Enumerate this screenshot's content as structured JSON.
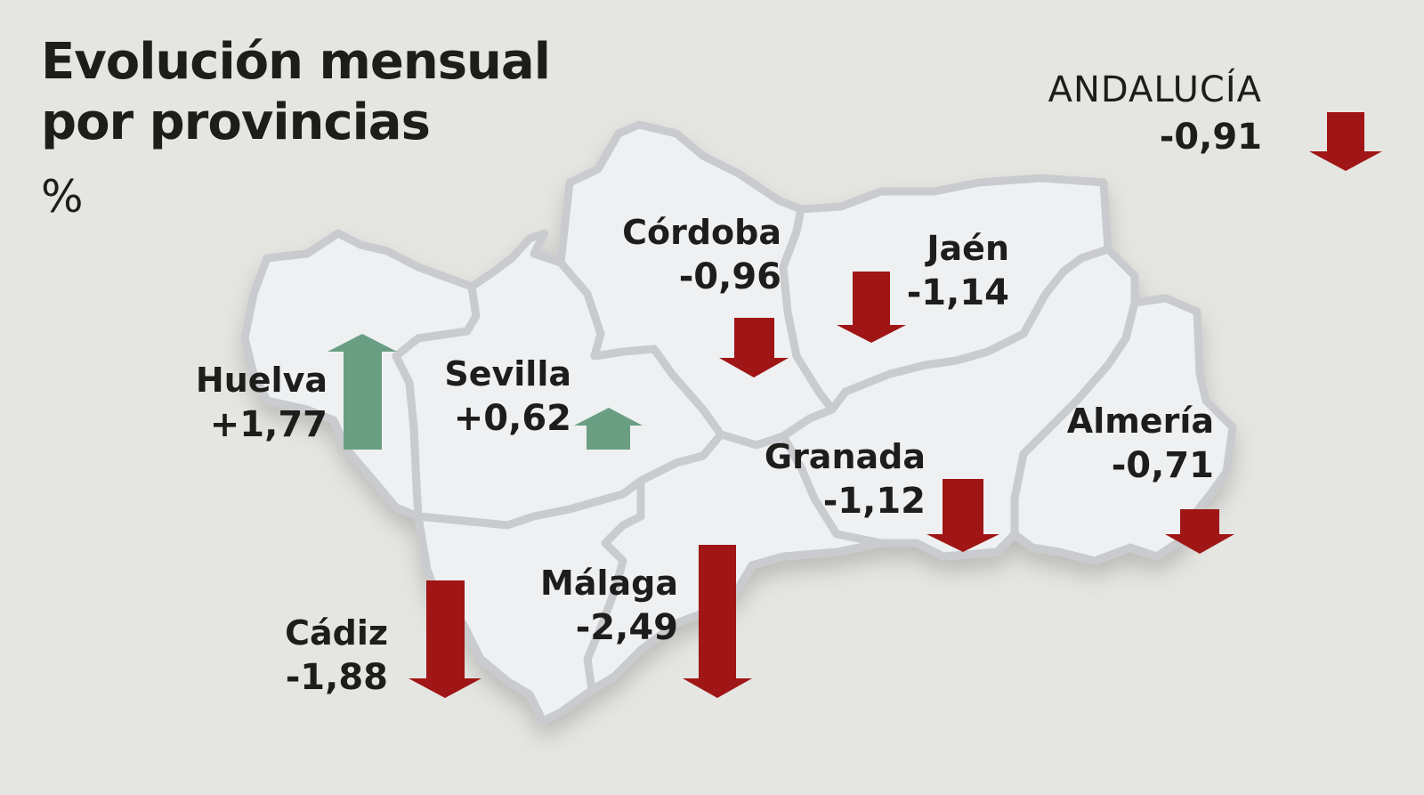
{
  "title_line1": "Evolución mensual",
  "title_line2": "por provincias",
  "unit": "%",
  "region": {
    "name": "ANDALUCÍA",
    "value": "-0,91",
    "direction": "down"
  },
  "provinces": {
    "huelva": {
      "name": "Huelva",
      "value": "+1,77",
      "direction": "up"
    },
    "sevilla": {
      "name": "Sevilla",
      "value": "+0,62",
      "direction": "up"
    },
    "cordoba": {
      "name": "Córdoba",
      "value": "-0,96",
      "direction": "down"
    },
    "jaen": {
      "name": "Jaén",
      "value": "-1,14",
      "direction": "down"
    },
    "granada": {
      "name": "Granada",
      "value": "-1,12",
      "direction": "down"
    },
    "almeria": {
      "name": "Almería",
      "value": "-0,71",
      "direction": "down"
    },
    "malaga": {
      "name": "Málaga",
      "value": "-2,49",
      "direction": "down"
    },
    "cadiz": {
      "name": "Cádiz",
      "value": "-1,88",
      "direction": "down"
    }
  },
  "colors": {
    "background": "#e5e6e2",
    "province_fill": "#eef0f2",
    "province_border": "#c9cbce",
    "up_arrow": "#6a9e82",
    "down_arrow": "#a01515",
    "text": "#1d1d1b"
  }
}
